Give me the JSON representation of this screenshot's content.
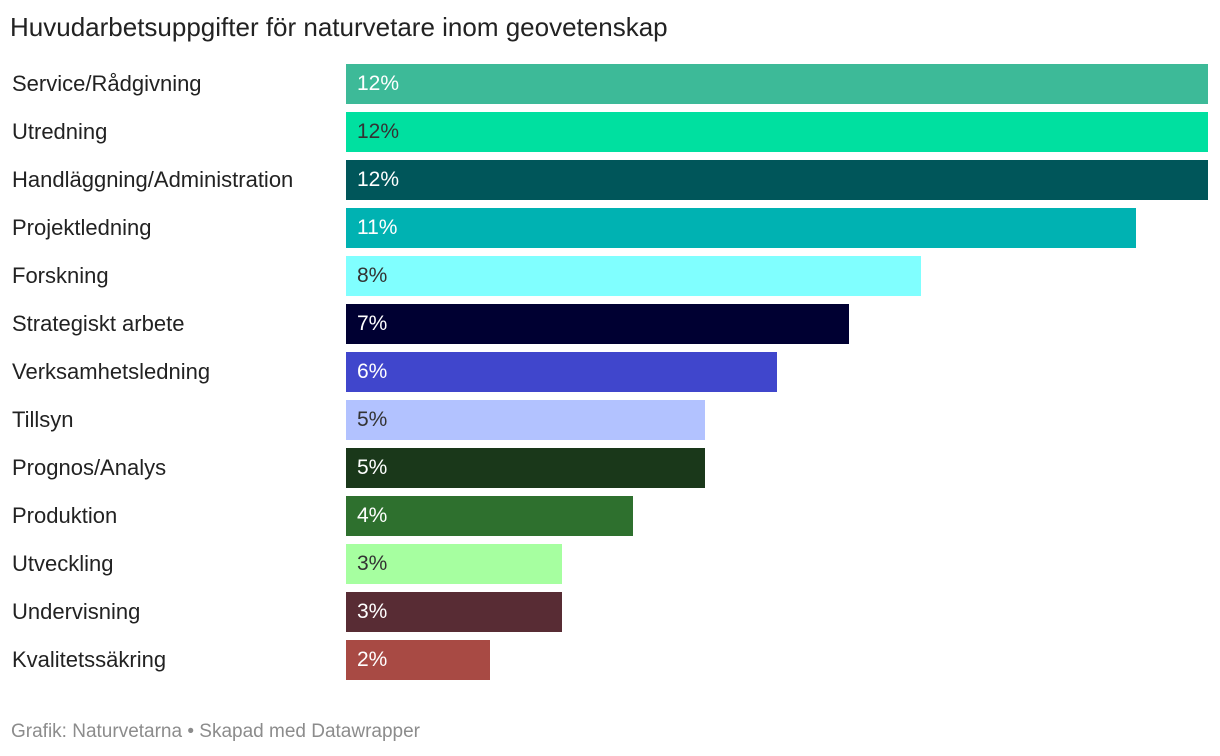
{
  "chart_data": {
    "type": "bar",
    "orientation": "horizontal",
    "title": "Huvudarbetsuppgifter för naturvetare inom geovetenskap",
    "categories": [
      "Service/Rådgivning",
      "Utredning",
      "Handläggning/Administration",
      "Projektledning",
      "Forskning",
      "Strategiskt arbete",
      "Verksamhetsledning",
      "Tillsyn",
      "Prognos/Analys",
      "Produktion",
      "Utveckling",
      "Undervisning",
      "Kvalitetssäkring"
    ],
    "values": [
      12,
      12,
      12,
      11,
      8,
      7,
      6,
      5,
      5,
      4,
      3,
      3,
      2
    ],
    "value_labels": [
      "12%",
      "12%",
      "12%",
      "11%",
      "8%",
      "7%",
      "6%",
      "5%",
      "5%",
      "4%",
      "3%",
      "3%",
      "2%"
    ],
    "colors": [
      "#3dba98",
      "#00e0a0",
      "#00565a",
      "#00b2b2",
      "#80ffff",
      "#000032",
      "#4046cc",
      "#b2c2ff",
      "#1a381a",
      "#2e702e",
      "#a6ffa0",
      "#582c34",
      "#a84a44"
    ],
    "label_colors": [
      "#ffffff",
      "#333333",
      "#ffffff",
      "#ffffff",
      "#333333",
      "#ffffff",
      "#ffffff",
      "#333333",
      "#ffffff",
      "#ffffff",
      "#333333",
      "#ffffff",
      "#ffffff"
    ],
    "xlim": [
      0,
      12
    ],
    "unit": "%",
    "xlabel": "",
    "ylabel": ""
  },
  "footer": {
    "credit": "Grafik: Naturvetarna • Skapad med Datawrapper"
  }
}
